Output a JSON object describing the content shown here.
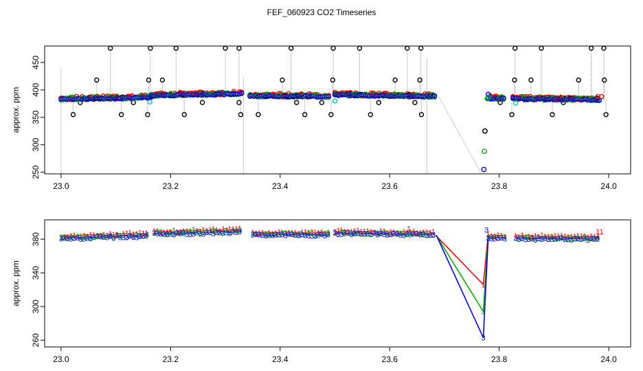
{
  "figure": {
    "title": "FEF_060923  CO2 Timeseries"
  },
  "chart_data": [
    {
      "type": "scatter",
      "ylabel": "approx. ppm",
      "xlim": [
        22.97,
        24.04
      ],
      "ylim": [
        247,
        480
      ],
      "xticks": [
        "23.0",
        "23.2",
        "23.4",
        "23.6",
        "23.8",
        "24.0"
      ],
      "yticks": [
        "250",
        "300",
        "350",
        "400",
        "450"
      ],
      "grid": false,
      "colors": {
        "black": "#000000",
        "red": "#ff0000",
        "green": "#00b000",
        "blue": "#0000ff",
        "cyan": "#00c8c8",
        "gray": "#9a9a9a"
      },
      "baseline_segments": [
        {
          "x": [
            23.0,
            23.165
          ],
          "y": [
            383,
            386
          ]
        },
        {
          "x": [
            23.165,
            23.33
          ],
          "y": [
            390,
            393
          ]
        },
        {
          "x": [
            23.345,
            23.49
          ],
          "y": [
            389,
            388
          ]
        },
        {
          "x": [
            23.5,
            23.685
          ],
          "y": [
            391,
            388
          ]
        },
        {
          "x": [
            23.78,
            23.81
          ],
          "y": [
            385,
            384
          ]
        },
        {
          "x": [
            23.825,
            23.985
          ],
          "y": [
            384,
            382
          ]
        }
      ],
      "outliers_high": [
        23.09,
        23.163,
        23.21,
        23.3,
        23.325,
        23.42,
        23.497,
        23.545,
        23.632,
        23.657,
        23.829,
        23.877,
        23.968,
        23.991
      ],
      "outliers_mid": [
        23.065,
        23.16,
        23.185,
        23.404,
        23.496,
        23.61,
        23.655,
        23.828,
        23.858,
        23.945,
        23.992
      ],
      "outliers_low": [
        23.022,
        23.11,
        23.158,
        23.225,
        23.328,
        23.36,
        23.445,
        23.493,
        23.565,
        23.658,
        23.823,
        23.897,
        23.995
      ],
      "outliers_dip": [
        23.035,
        23.132,
        23.258,
        23.325,
        23.43,
        23.476,
        23.58,
        23.646,
        23.802,
        23.917
      ],
      "cyan_points": [
        {
          "x": 23.162,
          "y": 378
        },
        {
          "x": 23.5,
          "y": 380
        },
        {
          "x": 23.78,
          "y": 387
        },
        {
          "x": 23.83,
          "y": 376
        }
      ],
      "vertical_spikes": [
        {
          "x": 23.0,
          "y": [
            248,
            440
          ]
        },
        {
          "x": 23.333,
          "y": [
            248,
            425
          ]
        },
        {
          "x": 23.668,
          "y": [
            248,
            458
          ]
        }
      ],
      "gap_line": {
        "x": [
          23.69,
          23.765
        ],
        "y": [
          387,
          252
        ]
      },
      "dip_points": [
        {
          "x": 23.774,
          "y": 325,
          "color": "red"
        },
        {
          "x": 23.774,
          "y": 325,
          "color": "black"
        },
        {
          "x": 23.773,
          "y": 288,
          "color": "green"
        },
        {
          "x": 23.772,
          "y": 255,
          "color": "blue"
        }
      ]
    },
    {
      "type": "line",
      "ylabel": "approx. ppm",
      "xlim": [
        22.97,
        24.04
      ],
      "ylim": [
        252,
        403
      ],
      "xticks": [
        "23.0",
        "23.2",
        "23.4",
        "23.6",
        "23.8",
        "24.0"
      ],
      "yticks": [
        "260",
        "300",
        "340",
        "380"
      ],
      "grid": false,
      "series": [
        {
          "name": "1",
          "color": "#ff0000",
          "dip": 326
        },
        {
          "name": "2",
          "color": "#00b000",
          "dip": 294
        },
        {
          "name": "3",
          "color": "#0000ff",
          "dip": 263
        }
      ],
      "segments": [
        {
          "x": [
            23.0,
            23.16
          ],
          "y": [
            381,
            384
          ]
        },
        {
          "x": [
            23.17,
            23.33
          ],
          "y": [
            386,
            389
          ]
        },
        {
          "x": [
            23.35,
            23.49
          ],
          "y": [
            385,
            385
          ]
        },
        {
          "x": [
            23.5,
            23.68
          ],
          "y": [
            387,
            385
          ]
        },
        {
          "x": [
            23.78,
            23.815
          ],
          "y": [
            382,
            381
          ]
        },
        {
          "x": [
            23.83,
            23.985
          ],
          "y": [
            381,
            380
          ]
        }
      ],
      "dip_start_x": 23.685,
      "dip_x": 23.771,
      "recover_x": 23.78,
      "recover_y": 383
    }
  ]
}
